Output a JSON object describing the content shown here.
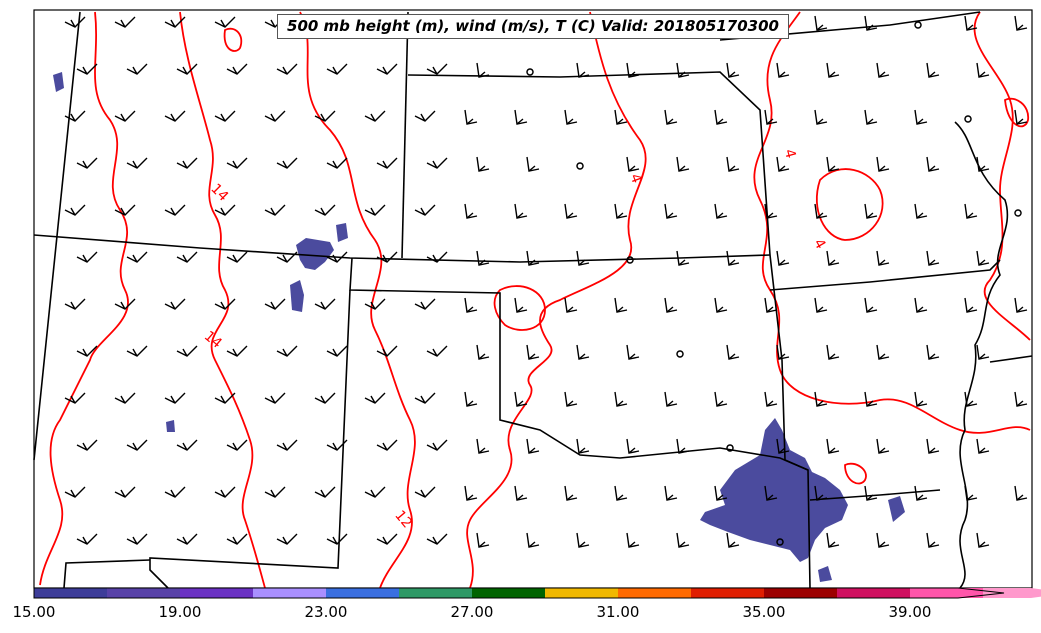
{
  "title": "500 mb height (m), wind (m/s), T (C) Valid: 201805170300",
  "colorbar": {
    "ticks": [
      "15.00",
      "19.00",
      "23.00",
      "27.00",
      "31.00",
      "35.00",
      "39.00"
    ],
    "colors": [
      "#3d3d99",
      "#5842a8",
      "#6b32c4",
      "#a98fff",
      "#3a6fe0",
      "#2e9966",
      "#006400",
      "#f0b800",
      "#ff6a00",
      "#e01e00",
      "#9c0000",
      "#d01060",
      "#ff55aa",
      "#ff99cc"
    ]
  },
  "contour_labels": [
    "14",
    "14",
    "12",
    "4",
    "4",
    "4"
  ],
  "colors": {
    "temperature_contour": "#ff0000",
    "state_borders": "#000000",
    "wind_barbs": "#000000",
    "shaded_wind": "#4b4b9e"
  }
}
